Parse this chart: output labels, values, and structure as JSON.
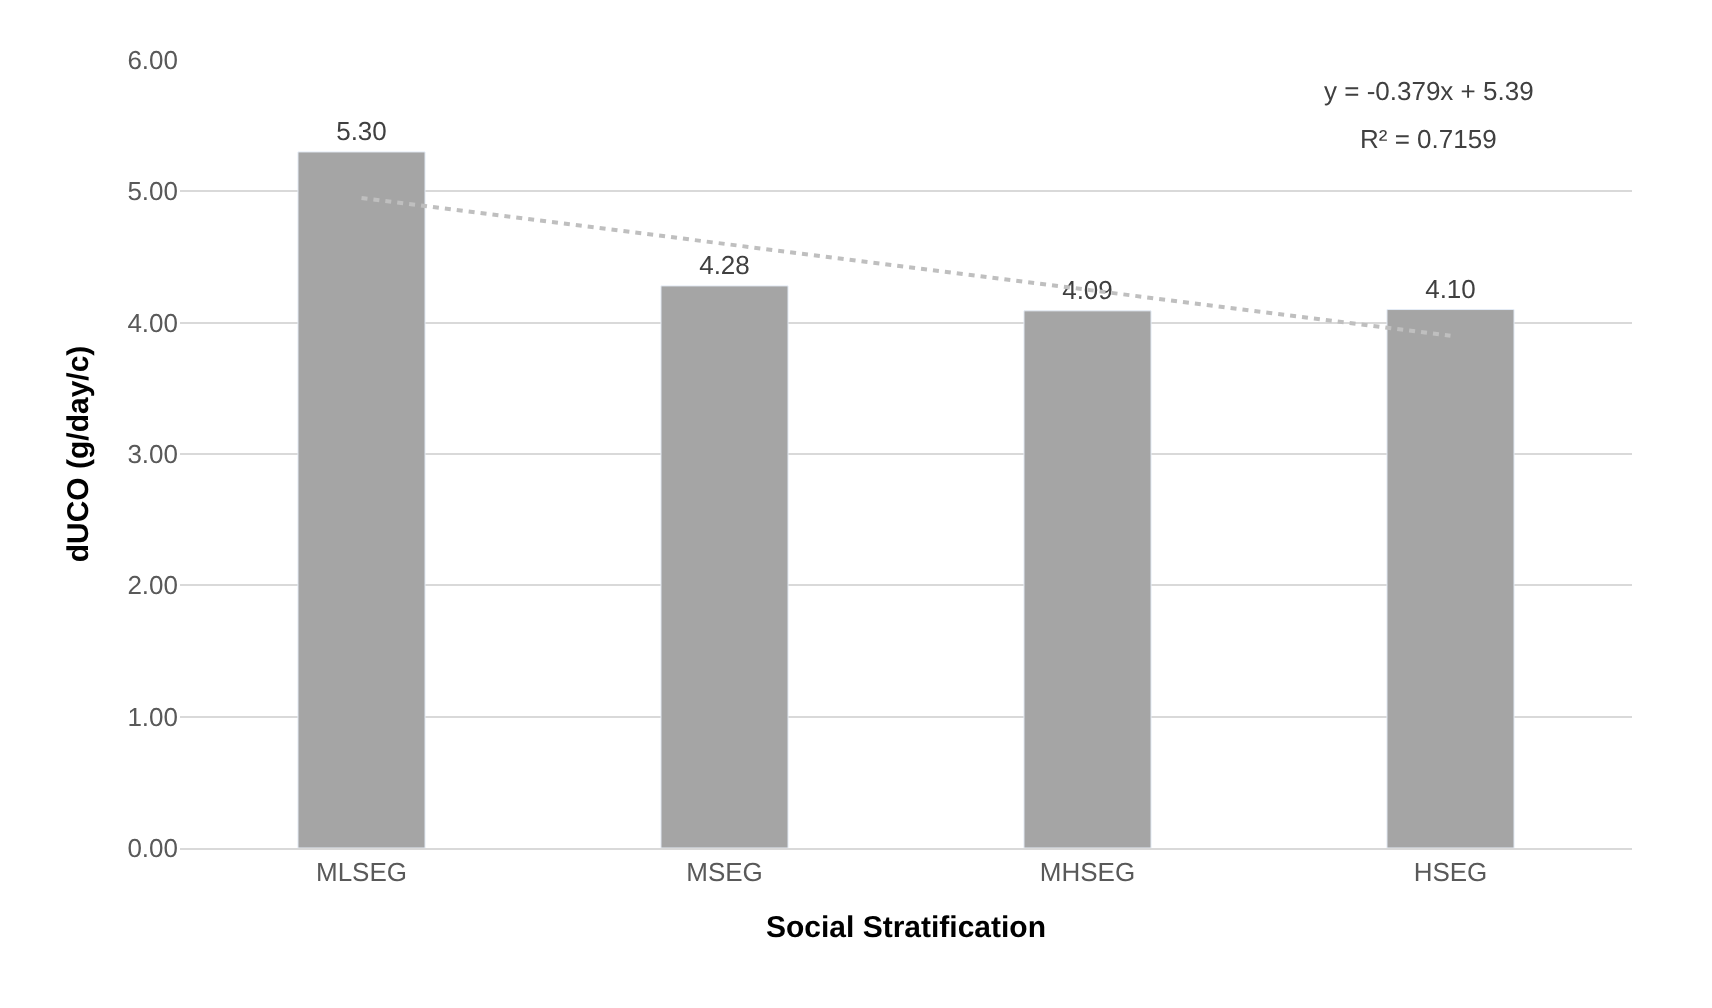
{
  "chart_data": {
    "type": "bar",
    "xlabel": "Social Stratification",
    "ylabel": "dUCO (g/day/c)",
    "categories": [
      "MLSEG",
      "MSEG",
      "MHSEG",
      "HSEG"
    ],
    "series": [
      {
        "color": "#a5a5a5",
        "values": [
          5.3,
          4.28,
          4.09,
          4.1
        ],
        "value_labels": [
          "5.30",
          "4.28",
          "4.09",
          "4.10"
        ]
      },
      {
        "type": "line",
        "color": "#bfbfbf",
        "x": [
          "MLSEG",
          "HSEG"
        ],
        "values": [
          4.95,
          3.9
        ],
        "line_style": "dotted"
      }
    ],
    "ylim": [
      0,
      6
    ],
    "yticks": [
      {
        "value": 0,
        "label": "0.00"
      },
      {
        "value": 1,
        "label": "1.00"
      },
      {
        "value": 2,
        "label": "2.00"
      },
      {
        "value": 3,
        "label": "3.00"
      },
      {
        "value": 4,
        "label": "4.00"
      },
      {
        "value": 5,
        "label": "5.00"
      },
      {
        "value": 6,
        "label": "6.00"
      }
    ],
    "grid": "y",
    "annotations": [
      "y = -0.379x + 5.39",
      "R² = 0.7159"
    ]
  }
}
